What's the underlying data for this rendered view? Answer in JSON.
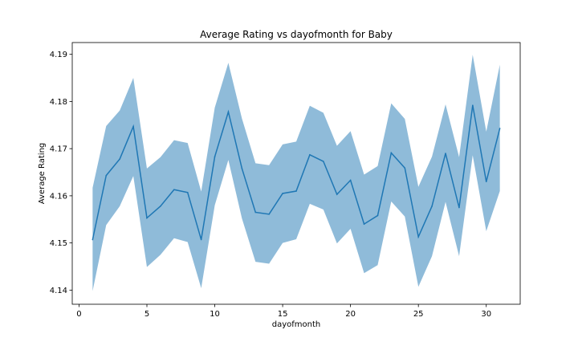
{
  "chart_data": {
    "type": "line",
    "title": "Average Rating vs dayofmonth for Baby",
    "xlabel": "dayofmonth",
    "ylabel": "Average Rating",
    "xlim": [
      -0.5,
      32.5
    ],
    "ylim": [
      4.137,
      4.1925
    ],
    "xticks": [
      0,
      5,
      10,
      15,
      20,
      25,
      30
    ],
    "yticks": [
      4.14,
      4.15,
      4.16,
      4.17,
      4.18,
      4.19
    ],
    "ytick_labels": [
      "4.14",
      "4.15",
      "4.16",
      "4.17",
      "4.18",
      "4.19"
    ],
    "grid": false,
    "series": [
      {
        "x": [
          1,
          2,
          3,
          4,
          5,
          6,
          7,
          8,
          9,
          10,
          11,
          12,
          13,
          14,
          15,
          16,
          17,
          18,
          19,
          20,
          21,
          22,
          23,
          24,
          25,
          26,
          27,
          28,
          29,
          30,
          31
        ],
        "values": [
          4.1507,
          4.1643,
          4.1678,
          4.1747,
          4.1553,
          4.1578,
          4.1613,
          4.1607,
          4.1507,
          4.1683,
          4.1778,
          4.1658,
          4.1565,
          4.1561,
          4.1605,
          4.161,
          4.1687,
          4.1673,
          4.1603,
          4.1633,
          4.154,
          4.1558,
          4.1691,
          4.1659,
          4.1513,
          4.1578,
          4.169,
          4.1575,
          4.1792,
          4.163,
          4.1743
        ],
        "lower": [
          4.1398,
          4.1538,
          4.1578,
          4.1642,
          4.1449,
          4.1475,
          4.151,
          4.1502,
          4.1404,
          4.158,
          4.1676,
          4.1552,
          4.146,
          4.1456,
          4.15,
          4.1508,
          4.1583,
          4.1571,
          4.1499,
          4.153,
          4.1436,
          4.1453,
          4.1588,
          4.1556,
          4.1407,
          4.1472,
          4.1587,
          4.1472,
          4.1686,
          4.1525,
          4.161
        ],
        "upper": [
          4.1617,
          4.1748,
          4.1781,
          4.185,
          4.1658,
          4.1682,
          4.1718,
          4.1712,
          4.1609,
          4.1787,
          4.1882,
          4.1764,
          4.1669,
          4.1665,
          4.1709,
          4.1715,
          4.1791,
          4.1776,
          4.1706,
          4.1737,
          4.1645,
          4.1663,
          4.1796,
          4.1763,
          4.1619,
          4.1683,
          4.1794,
          4.1682,
          4.1899,
          4.1736,
          4.1878
        ]
      }
    ],
    "colors": {
      "line": "#1f77b4",
      "band": "#1f77b4"
    }
  }
}
